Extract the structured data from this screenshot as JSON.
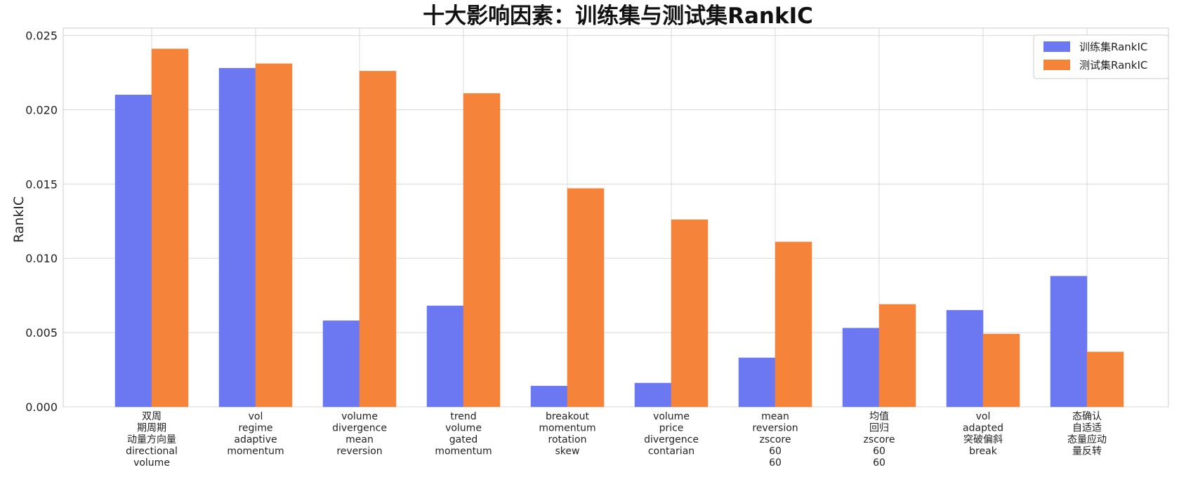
{
  "chart_data": {
    "type": "bar",
    "title": "十大影响因素：训练集与测试集RankIC",
    "xlabel": "",
    "ylabel": "RankIC",
    "ylim": [
      0,
      0.0255
    ],
    "yticks": [
      "0.000",
      "0.005",
      "0.010",
      "0.015",
      "0.020",
      "0.025"
    ],
    "ytick_values": [
      0,
      0.005,
      0.01,
      0.015,
      0.02,
      0.025
    ],
    "grid": true,
    "legend_position": "top-right",
    "categories": [
      [
        "双周",
        "期周期",
        "动量方向量",
        "directional",
        "volume"
      ],
      [
        "vol",
        "regime",
        "adaptive",
        "momentum"
      ],
      [
        "volume",
        "divergence",
        "mean",
        "reversion"
      ],
      [
        "trend",
        "volume",
        "gated",
        "momentum"
      ],
      [
        "breakout",
        "momentum",
        "rotation",
        "skew"
      ],
      [
        "volume",
        "price",
        "divergence",
        "contarian"
      ],
      [
        "mean",
        "reversion",
        "zscore",
        "60",
        "60"
      ],
      [
        "均值",
        "回归",
        "zscore",
        "60",
        "60"
      ],
      [
        "vol",
        "adapted",
        "突破偏斜",
        "break"
      ],
      [
        "态确认",
        "自适适",
        "态量应动",
        "量反转"
      ]
    ],
    "series": [
      {
        "name": "训练集RankIC",
        "color": "#6b78f2",
        "values": [
          0.021,
          0.0228,
          0.0058,
          0.0068,
          0.0014,
          0.0016,
          0.0033,
          0.0053,
          0.0065,
          0.0088
        ]
      },
      {
        "name": "测试集RankIC",
        "color": "#f5843a",
        "values": [
          0.0241,
          0.0231,
          0.0226,
          0.0211,
          0.0147,
          0.0126,
          0.0111,
          0.0069,
          0.0049,
          0.0037
        ]
      }
    ]
  }
}
